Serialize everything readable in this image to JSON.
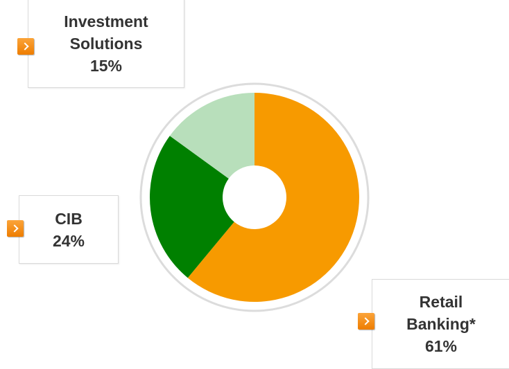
{
  "chart_data": {
    "type": "donut",
    "categories": [
      "Retail Banking*",
      "CIB",
      "Investment Solutions"
    ],
    "values": [
      61,
      24,
      15
    ],
    "value_labels": [
      "61%",
      "24%",
      "15%"
    ],
    "colors": [
      "#f79a00",
      "#008000",
      "#b8dfbb"
    ]
  }
}
